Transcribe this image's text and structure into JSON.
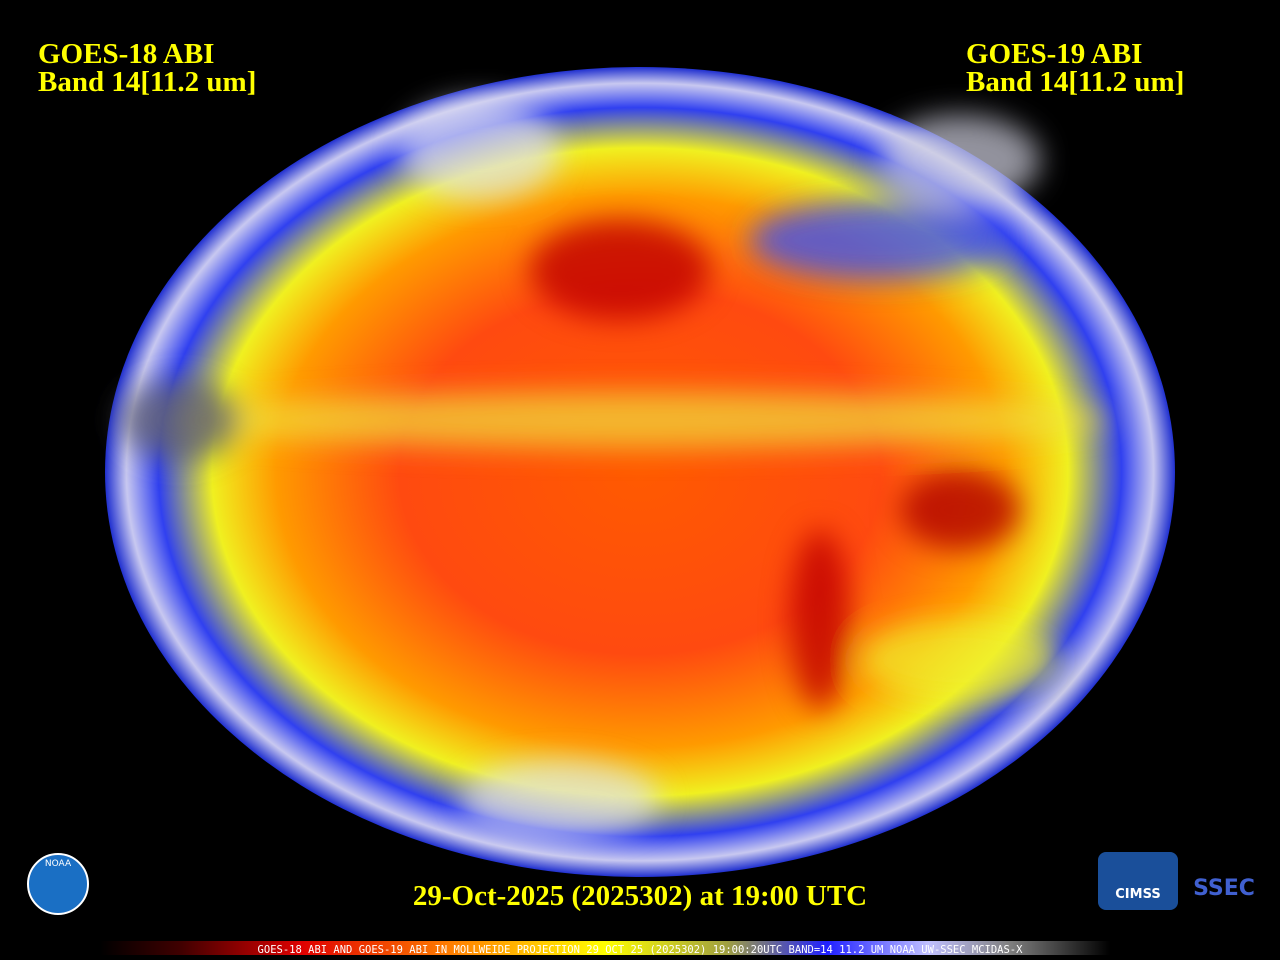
{
  "header": {
    "left": {
      "line1": "GOES-18 ABI",
      "line2": "Band 14[11.2 um]"
    },
    "right": {
      "line1": "GOES-19 ABI",
      "line2": "Band 14[11.2 um]"
    }
  },
  "timestamp": "29-Oct-2025 (2025302) at 19:00 UTC",
  "footer": "GOES-18 ABI AND GOES-19 ABI IN MOLLWEIDE PROJECTION 29 OCT 25 (2025302) 19:00:20UTC BAND=14 11.2 UM NOAA UW-SSEC MCIDAS-X",
  "logos": {
    "noaa": "NOAA",
    "cimss": "CIMSS",
    "ssec": "SSEC"
  }
}
